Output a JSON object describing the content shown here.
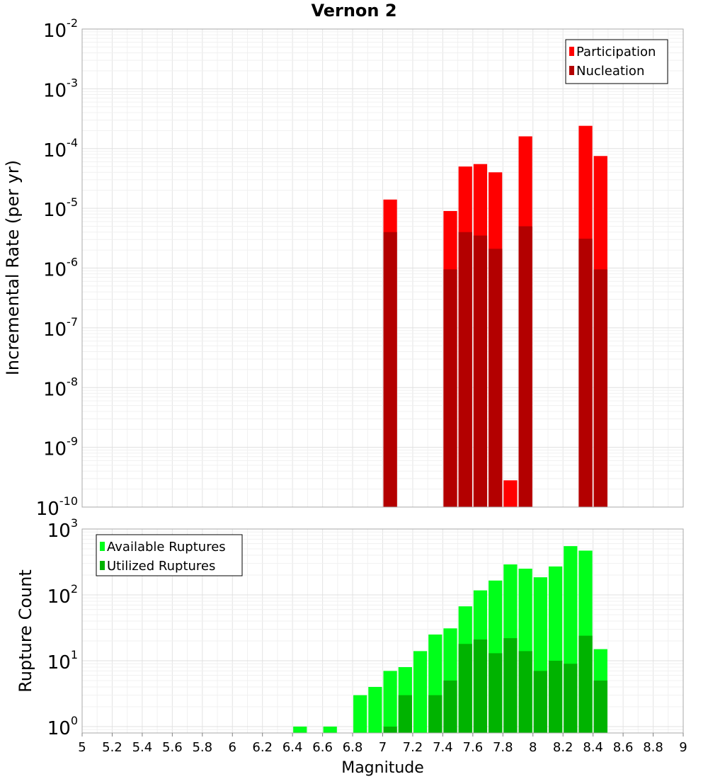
{
  "title": "Vernon 2",
  "chart_data": [
    {
      "type": "bar",
      "panel": "top",
      "title": "Vernon 2",
      "xlabel": "",
      "ylabel": "Incremental Rate (per yr)",
      "yscale": "log",
      "ylim": [
        1e-10,
        0.01
      ],
      "xlim": [
        5,
        9
      ],
      "legend_position": "top-right",
      "bin_width": 0.1,
      "series": [
        {
          "name": "Participation",
          "color": "#ff0000",
          "x": [
            7.05,
            7.45,
            7.55,
            7.65,
            7.75,
            7.85,
            7.95,
            8.35,
            8.45
          ],
          "values": [
            1.4e-05,
            9e-06,
            5e-05,
            5.5e-05,
            4e-05,
            2.8e-10,
            0.00016,
            0.00024,
            7.5e-05
          ]
        },
        {
          "name": "Nucleation",
          "color": "#b30000",
          "x": [
            7.05,
            7.45,
            7.55,
            7.65,
            7.75,
            7.95,
            8.35,
            8.45
          ],
          "values": [
            4e-06,
            9.5e-07,
            4e-06,
            3.5e-06,
            2.1e-06,
            5e-06,
            3.1e-06,
            9.5e-07
          ]
        }
      ],
      "yticks": [
        {
          "base": "10",
          "exp": "-10"
        },
        {
          "base": "10",
          "exp": "-9"
        },
        {
          "base": "10",
          "exp": "-8"
        },
        {
          "base": "10",
          "exp": "-7"
        },
        {
          "base": "10",
          "exp": "-6"
        },
        {
          "base": "10",
          "exp": "-5"
        },
        {
          "base": "10",
          "exp": "-4"
        },
        {
          "base": "10",
          "exp": "-3"
        },
        {
          "base": "10",
          "exp": "-2"
        }
      ]
    },
    {
      "type": "bar",
      "panel": "bottom",
      "title": "",
      "xlabel": "Magnitude",
      "ylabel": "Rupture Count",
      "yscale": "log",
      "ylim": [
        0.8,
        1000
      ],
      "xlim": [
        5,
        9
      ],
      "legend_position": "top-left",
      "bin_width": 0.1,
      "series": [
        {
          "name": "Available Ruptures",
          "color": "#00ff1a",
          "x": [
            6.45,
            6.65,
            6.85,
            6.95,
            7.05,
            7.15,
            7.25,
            7.35,
            7.45,
            7.55,
            7.65,
            7.75,
            7.85,
            7.95,
            8.05,
            8.15,
            8.25,
            8.35,
            8.45
          ],
          "values": [
            1,
            1,
            3,
            4,
            7,
            8,
            14,
            25,
            31,
            67,
            117,
            165,
            290,
            250,
            185,
            270,
            550,
            470,
            15
          ]
        },
        {
          "name": "Utilized Ruptures",
          "color": "#00b300",
          "x": [
            7.05,
            7.15,
            7.35,
            7.45,
            7.55,
            7.65,
            7.75,
            7.85,
            7.95,
            8.05,
            8.15,
            8.25,
            8.35,
            8.45
          ],
          "values": [
            1,
            3,
            3,
            5,
            18,
            21,
            13,
            22,
            14,
            7,
            10,
            9,
            24,
            5
          ]
        }
      ],
      "yticks": [
        {
          "base": "10",
          "exp": "0"
        },
        {
          "base": "10",
          "exp": "1"
        },
        {
          "base": "10",
          "exp": "2"
        },
        {
          "base": "10",
          "exp": "3"
        }
      ],
      "xticks": [
        "5",
        "5.2",
        "5.4",
        "5.6",
        "5.8",
        "6",
        "6.2",
        "6.4",
        "6.6",
        "6.8",
        "7",
        "7.2",
        "7.4",
        "7.6",
        "7.8",
        "8",
        "8.2",
        "8.4",
        "8.6",
        "8.8",
        "9"
      ]
    }
  ]
}
